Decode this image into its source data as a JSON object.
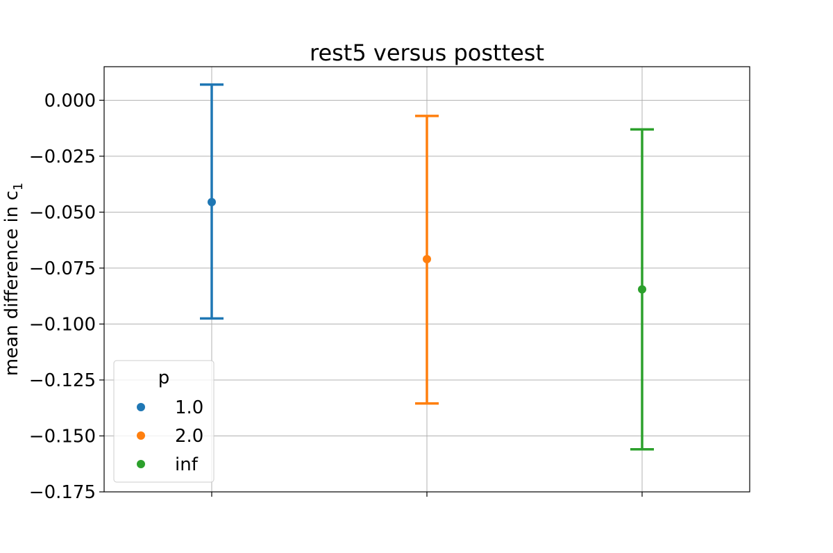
{
  "chart_data": {
    "type": "scatter",
    "title": "rest5 versus posttest",
    "xlabel": "",
    "ylabel": "mean difference in c",
    "ylabel_subscript": "1",
    "ylim": [
      -0.175,
      0.015
    ],
    "yticks": [
      0.0,
      -0.025,
      -0.05,
      -0.075,
      -0.1,
      -0.125,
      -0.15,
      -0.175
    ],
    "ytick_labels": [
      "0.000",
      "−0.025",
      "−0.050",
      "−0.075",
      "−0.100",
      "−0.125",
      "−0.150",
      "−0.175"
    ],
    "grid": true,
    "legend": {
      "title": "p",
      "placement": "lower-left"
    },
    "series": [
      {
        "name": "1.0",
        "color": "#1f77b4",
        "value": -0.0455,
        "err_low": -0.0975,
        "err_high": 0.007
      },
      {
        "name": "2.0",
        "color": "#ff7f0e",
        "value": -0.071,
        "err_low": -0.1355,
        "err_high": -0.007
      },
      {
        "name": "inf",
        "color": "#2ca02c",
        "value": -0.0845,
        "err_low": -0.156,
        "err_high": -0.013
      }
    ]
  }
}
